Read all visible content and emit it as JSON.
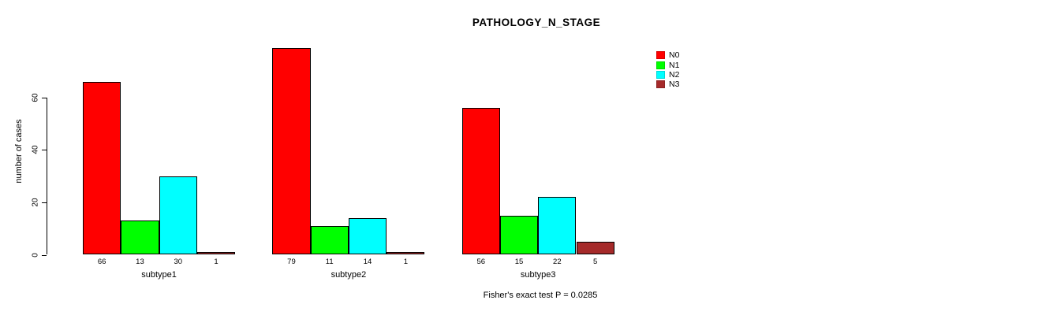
{
  "chart_data": {
    "type": "bar",
    "title": "PATHOLOGY_N_STAGE",
    "ylabel": "number of cases",
    "xlabel": "",
    "categories": [
      "subtype1",
      "subtype2",
      "subtype3"
    ],
    "series": [
      {
        "name": "N0",
        "color": "#FF0000",
        "values": [
          66,
          79,
          56
        ]
      },
      {
        "name": "N1",
        "color": "#00FF00",
        "values": [
          13,
          11,
          15
        ]
      },
      {
        "name": "N2",
        "color": "#00FFFF",
        "values": [
          30,
          14,
          22
        ]
      },
      {
        "name": "N3",
        "color": "#A52A2A",
        "values": [
          1,
          1,
          5
        ]
      }
    ],
    "yticks": [
      0,
      20,
      40,
      60
    ],
    "ylim": [
      0,
      79
    ],
    "grid": false,
    "legend_position": "top-right",
    "bar_value_labels": true,
    "bar_border_color": "#000000",
    "background": "#FFFFFF",
    "annotation": "Fisher's exact test P = 0.0285"
  }
}
